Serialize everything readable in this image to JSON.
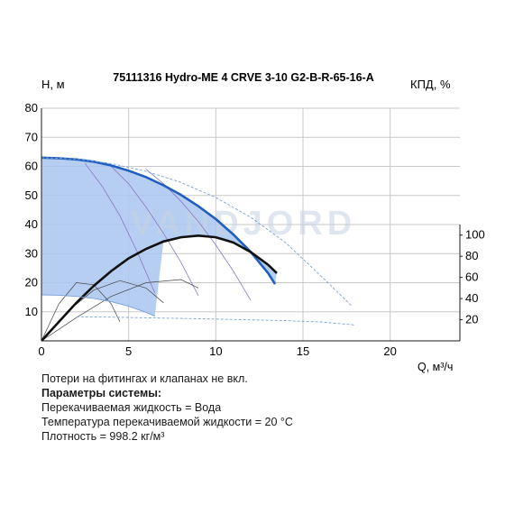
{
  "chart_data": {
    "type": "line",
    "title": "75111316 Hydro-ME 4 CRVE 3-10 G2-B-R-65-16-A",
    "ylabel": "H, м",
    "y2label": "КПД, %",
    "xlabel": "Q, м³/ч",
    "xlim": [
      0,
      24
    ],
    "ylim": [
      0,
      80
    ],
    "y2lim": [
      0,
      220
    ],
    "xticks": [
      "0",
      "5",
      "10",
      "15",
      "20"
    ],
    "yticks": [
      "10",
      "20",
      "30",
      "40",
      "50",
      "60",
      "70",
      "80"
    ],
    "y2ticks": [
      "20",
      "40",
      "60",
      "80",
      "100"
    ],
    "grid": true,
    "watermark": "VANDJORD",
    "series": [
      {
        "role": "head-max",
        "color": "#1f5fbf",
        "x": [
          0,
          1,
          2,
          3,
          4,
          5,
          6,
          7,
          8,
          9,
          10,
          11,
          12,
          13,
          13.4
        ],
        "y": [
          63,
          62.8,
          62.4,
          61.6,
          60.3,
          58.5,
          56.3,
          53.5,
          50.2,
          46.3,
          41.9,
          36.6,
          30.6,
          23.3,
          19.5
        ]
      },
      {
        "role": "efficiency",
        "color": "#111111",
        "x": [
          0,
          1,
          2,
          3,
          4,
          5,
          6,
          7,
          8,
          9,
          10,
          11,
          12,
          13,
          13.5
        ],
        "y": [
          0,
          18,
          36,
          52,
          66,
          78,
          87,
          94,
          98,
          99.5,
          98,
          93,
          84,
          72,
          64
        ]
      },
      {
        "role": "head-extended",
        "color": "#7aa0d8",
        "x": [
          0,
          2,
          4,
          6,
          8,
          10,
          12,
          14,
          16,
          17.8
        ],
        "y": [
          63,
          62.5,
          61,
          58.3,
          54.5,
          49.3,
          42.5,
          33.8,
          22.5,
          12
        ]
      },
      {
        "role": "power-extended",
        "color": "#7aa0d8",
        "x": [
          2,
          4,
          6,
          8,
          10,
          12,
          14,
          16,
          18
        ],
        "y": [
          22.8,
          22.4,
          21.8,
          21.2,
          20.6,
          19.9,
          19.1,
          17.9,
          15
        ]
      },
      {
        "role": "head-min",
        "color": "#7aa0d8",
        "x": [
          0,
          1,
          2,
          3,
          4,
          5,
          6,
          6.5
        ],
        "y": [
          15.8,
          15.7,
          15.3,
          14.6,
          13.5,
          11.9,
          9.8,
          8.5
        ]
      }
    ],
    "system_curves": [
      {
        "x": [
          2.5,
          3.5,
          4.5,
          5.5,
          6.5
        ],
        "y": [
          61,
          53,
          43,
          30.5,
          16.5
        ]
      },
      {
        "x": [
          4,
          5,
          6,
          7,
          8,
          9
        ],
        "y": [
          60,
          54,
          46,
          37,
          27,
          15.5
        ]
      },
      {
        "x": [
          6,
          7,
          8,
          9,
          10,
          11,
          12
        ],
        "y": [
          59,
          54,
          48,
          41,
          33,
          24,
          14
        ]
      }
    ],
    "efficiency_family": [
      {
        "x": [
          0,
          1,
          2,
          3,
          4,
          4.5
        ],
        "y": [
          0,
          35,
          55,
          53,
          35,
          18
        ]
      },
      {
        "x": [
          0,
          1.5,
          3,
          4.5,
          6,
          7
        ],
        "y": [
          0,
          28,
          48,
          57,
          50,
          36
        ]
      },
      {
        "x": [
          0,
          2,
          4,
          6,
          8,
          9
        ],
        "y": [
          0,
          22,
          42,
          55,
          58,
          50
        ]
      }
    ]
  },
  "notes": {
    "line1": "Потери на фитингах и клапанах не вкл.",
    "line2": "Параметры системы:",
    "line3": "Перекачиваемая жидкость = Вода",
    "line4": "Температура перекачиваемой жидкости = 20 °C",
    "line5": "Плотность = 998.2 кг/м³"
  }
}
